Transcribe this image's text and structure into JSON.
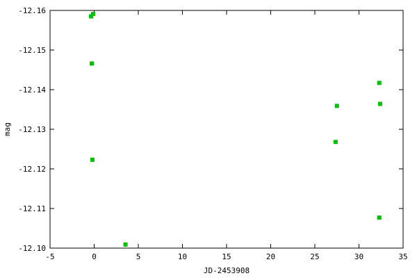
{
  "chart_data": {
    "type": "scatter",
    "title": "",
    "xlabel": "JD-2453908",
    "ylabel": "mag",
    "xlim": [
      -5,
      35
    ],
    "ylim": [
      -12.16,
      -12.1
    ],
    "y_inverted": true,
    "grid": false,
    "xticks": [
      -5,
      0,
      5,
      10,
      15,
      20,
      25,
      30,
      35
    ],
    "xtick_labels": [
      "-5",
      "0",
      "5",
      "10",
      "15",
      "20",
      "25",
      "30",
      "35"
    ],
    "yticks": [
      -12.16,
      -12.15,
      -12.14,
      -12.13,
      -12.12,
      -12.11,
      -12.1
    ],
    "ytick_labels": [
      "-12.16",
      "-12.15",
      "-12.14",
      "-12.13",
      "-12.12",
      "-12.11",
      "-12.10"
    ],
    "marker_color": "#00c000",
    "series": [
      {
        "points": [
          {
            "x": -0.35,
            "y": -12.1585
          },
          {
            "x": -0.12,
            "y": -12.1591
          },
          {
            "x": -0.27,
            "y": -12.1466
          },
          {
            "x": -0.2,
            "y": -12.1223
          },
          {
            "x": 3.55,
            "y": -12.1009
          },
          {
            "x": 27.5,
            "y": -12.1359
          },
          {
            "x": 27.35,
            "y": -12.1268
          },
          {
            "x": 32.3,
            "y": -12.1417
          },
          {
            "x": 32.4,
            "y": -12.1364
          },
          {
            "x": 32.3,
            "y": -12.1077
          }
        ]
      }
    ]
  }
}
